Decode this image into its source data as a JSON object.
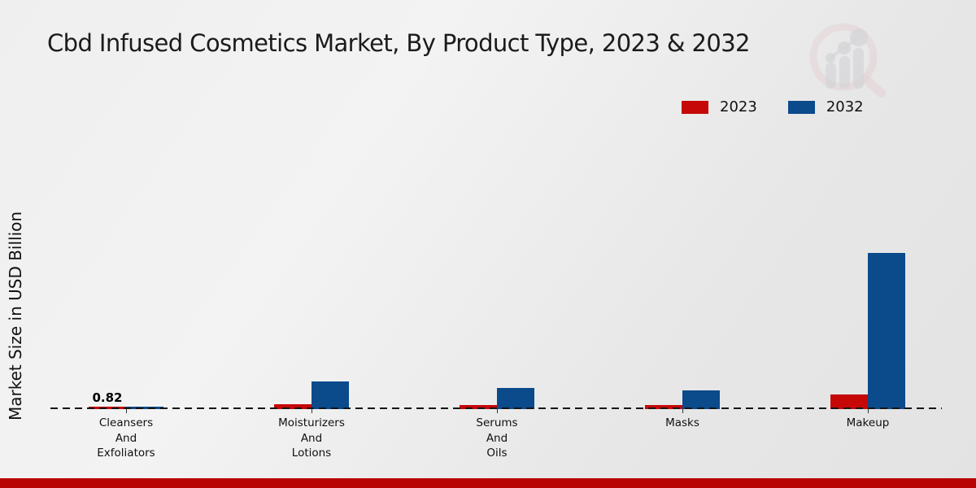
{
  "chart_data": {
    "type": "bar",
    "title": "Cbd Infused Cosmetics Market, By Product Type, 2023 & 2032",
    "ylabel": "Market Size in USD Billion",
    "xlabel": "",
    "categories": [
      [
        "Cleansers",
        "And",
        "Exfoliators"
      ],
      [
        "Moisturizers",
        "And",
        "Lotions"
      ],
      [
        "Serums",
        "And",
        "Oils"
      ],
      [
        "Masks"
      ],
      [
        "Makeup"
      ]
    ],
    "series": [
      {
        "name": "2023",
        "color": "#c60808",
        "values": [
          0.82,
          2.0,
          1.6,
          1.6,
          7.0
        ]
      },
      {
        "name": "2032",
        "color": "#0b4a8b",
        "values": [
          1.0,
          13.5,
          10.2,
          9.0,
          78.3
        ]
      }
    ],
    "annotations": [
      {
        "series_index": 0,
        "category_index": 0,
        "text": "0.82"
      }
    ],
    "ylim": [
      0,
      82
    ],
    "grid": false,
    "legend_position": "top-right",
    "baseline_style": "dashed"
  },
  "footer": {
    "bar_color": "#b90404"
  },
  "watermark": {
    "name": "market-research-logo"
  }
}
